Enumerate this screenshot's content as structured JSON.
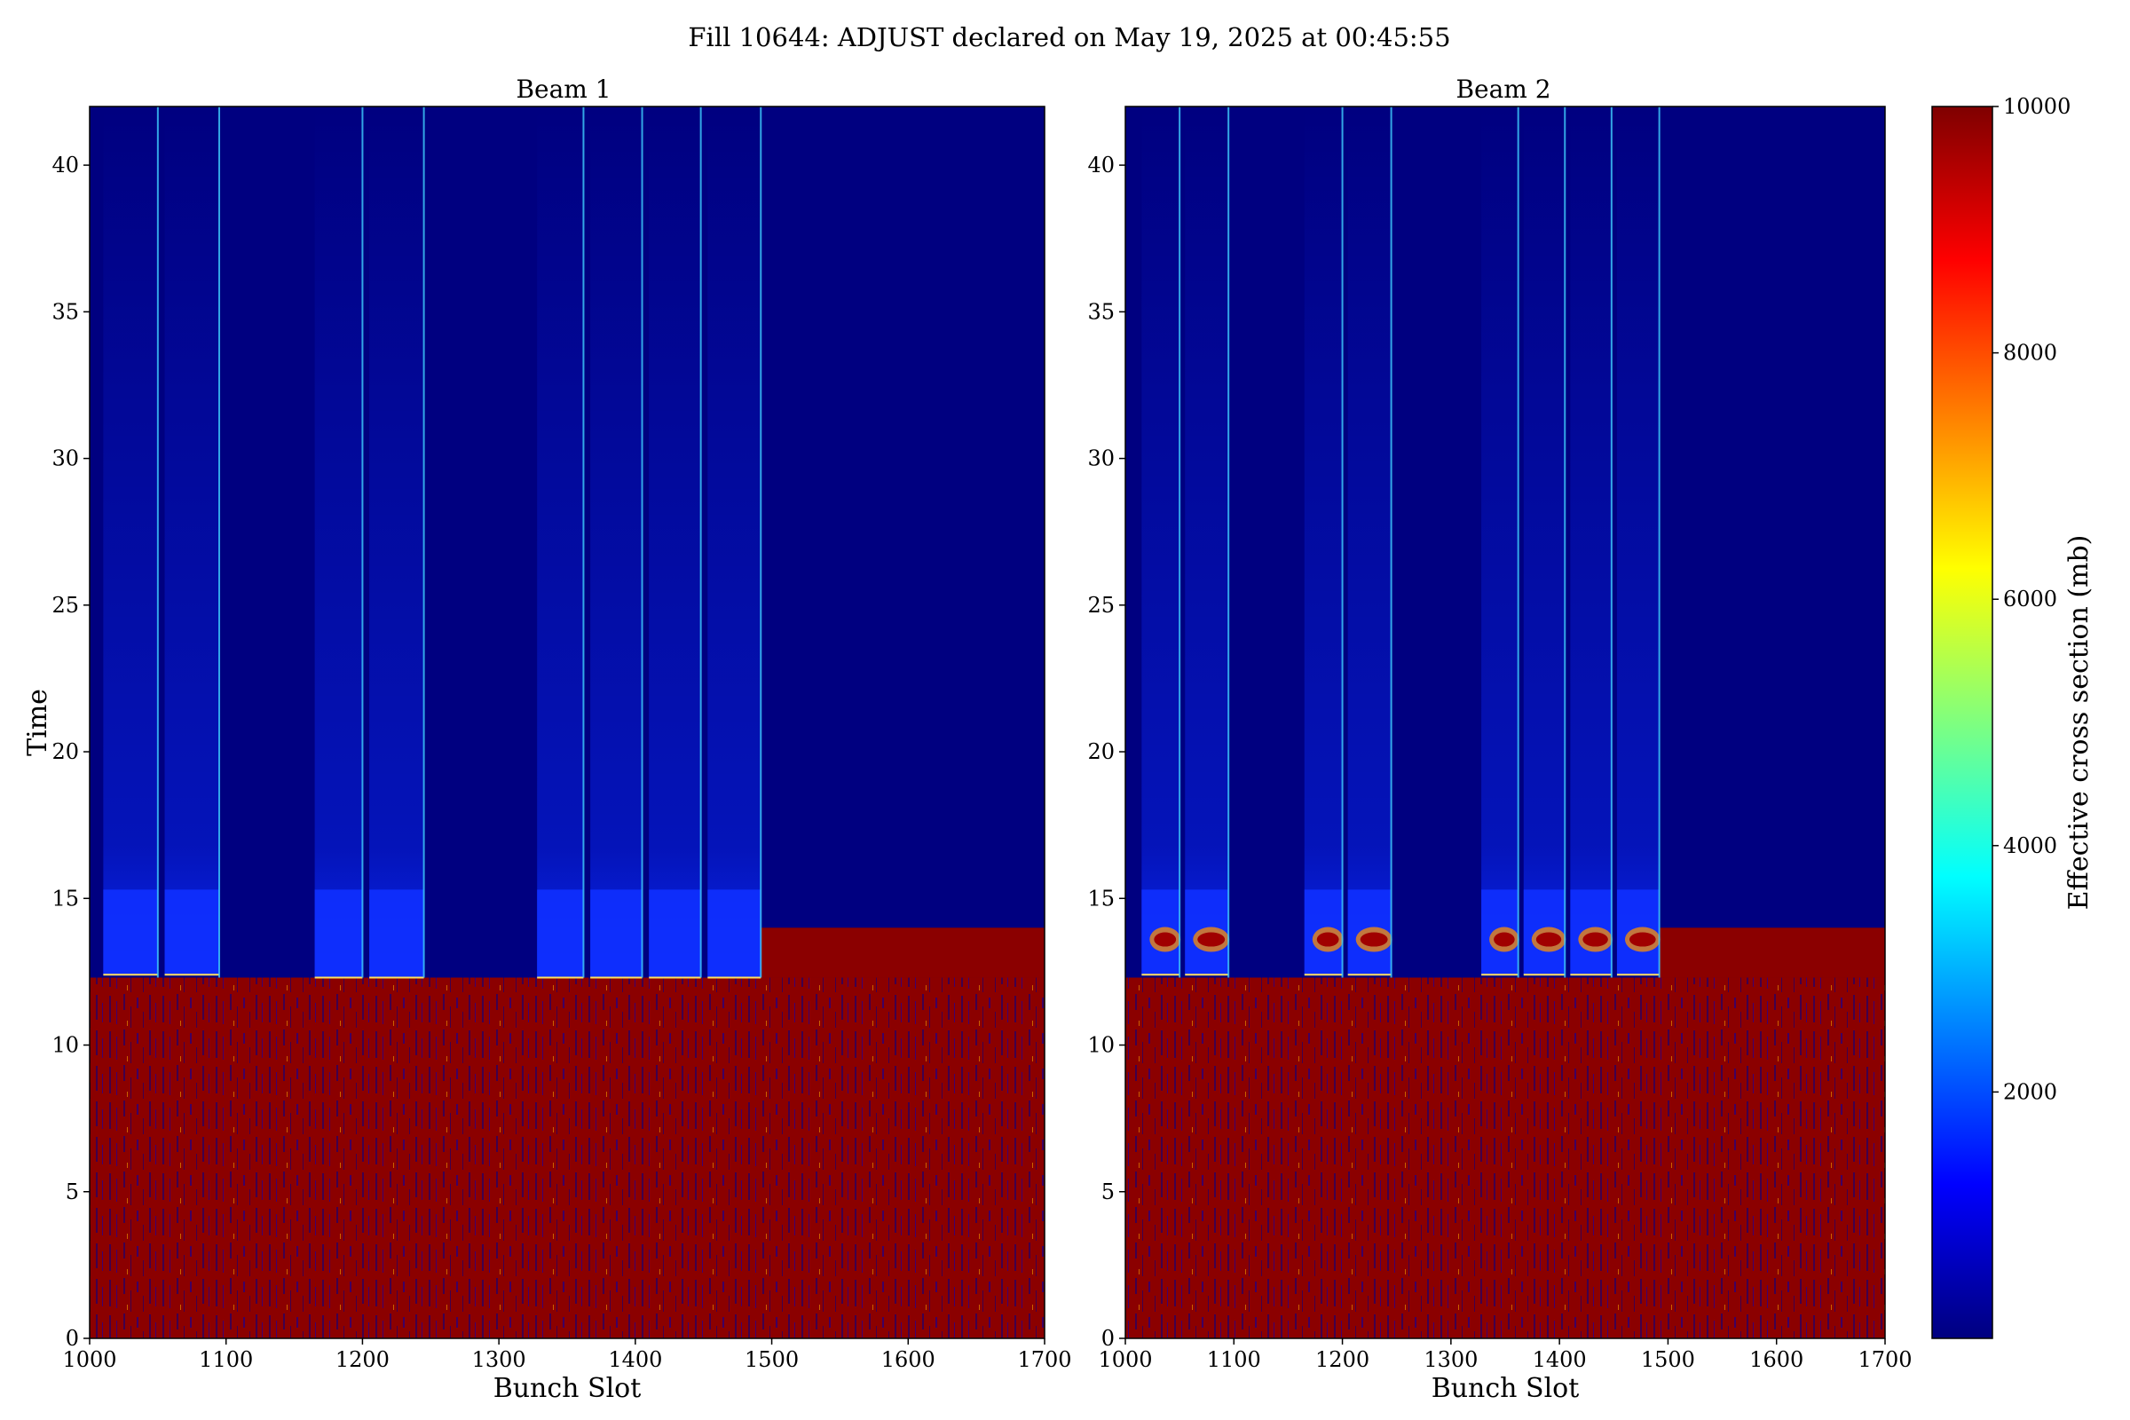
{
  "figure": {
    "suptitle": "Fill 10644: ADJUST declared on May 19, 2025 at 00:45:55"
  },
  "chart_data": [
    {
      "type": "heatmap",
      "title": "Beam 1",
      "xlabel": "Bunch Slot",
      "ylabel": "Time",
      "xlim": [
        1000,
        1700
      ],
      "ylim": [
        0,
        42
      ],
      "xticks": [
        1000,
        1100,
        1200,
        1300,
        1400,
        1500,
        1600,
        1700
      ],
      "yticks": [
        0,
        5,
        10,
        15,
        20,
        25,
        30,
        35,
        40
      ],
      "grid": false,
      "saturated_below_time": 12.3,
      "train_blocks": [
        {
          "x": [
            1010,
            1050
          ],
          "transition_time": 12.4
        },
        {
          "x": [
            1055,
            1095
          ],
          "transition_time": 12.4
        },
        {
          "x": [
            1165,
            1200
          ],
          "transition_time": 12.3
        },
        {
          "x": [
            1205,
            1245
          ],
          "transition_time": 12.3
        },
        {
          "x": [
            1328,
            1362
          ],
          "transition_time": 12.3
        },
        {
          "x": [
            1367,
            1405
          ],
          "transition_time": 12.3
        },
        {
          "x": [
            1410,
            1448
          ],
          "transition_time": 12.3
        },
        {
          "x": [
            1453,
            1492
          ],
          "transition_time": 12.3
        }
      ],
      "bright_lines": [
        1050,
        1095,
        1200,
        1245,
        1362,
        1405,
        1448,
        1492
      ]
    },
    {
      "type": "heatmap",
      "title": "Beam 2",
      "xlabel": "Bunch Slot",
      "xlim": [
        1000,
        1700
      ],
      "ylim": [
        0,
        42
      ],
      "xticks": [
        1000,
        1100,
        1200,
        1300,
        1400,
        1500,
        1600,
        1700
      ],
      "yticks": [
        0,
        5,
        10,
        15,
        20,
        25,
        30,
        35,
        40
      ],
      "grid": false,
      "saturated_below_time": 12.3,
      "train_blocks": [
        {
          "x": [
            1015,
            1050
          ],
          "transition_time": 12.4
        },
        {
          "x": [
            1055,
            1095
          ],
          "transition_time": 12.4
        },
        {
          "x": [
            1165,
            1200
          ],
          "transition_time": 12.4
        },
        {
          "x": [
            1205,
            1245
          ],
          "transition_time": 12.4
        },
        {
          "x": [
            1328,
            1362
          ],
          "transition_time": 12.4
        },
        {
          "x": [
            1367,
            1405
          ],
          "transition_time": 12.4
        },
        {
          "x": [
            1410,
            1448
          ],
          "transition_time": 12.4
        },
        {
          "x": [
            1453,
            1492
          ],
          "transition_time": 12.4
        }
      ],
      "bright_lines": [
        1050,
        1095,
        1200,
        1245,
        1362,
        1405,
        1448,
        1492
      ]
    }
  ],
  "colorbar": {
    "label": "Effective cross section (mb)",
    "colormap": "jet",
    "range": [
      0,
      10000
    ],
    "ticks": [
      2000,
      4000,
      6000,
      8000,
      10000
    ],
    "colors": [
      "#00007f",
      "#0000ff",
      "#007fff",
      "#00ffff",
      "#7fff7f",
      "#ffff00",
      "#ff7f00",
      "#ff0000",
      "#7f0000"
    ],
    "background_color": "#000080",
    "saturated_color": "#8b0000"
  }
}
